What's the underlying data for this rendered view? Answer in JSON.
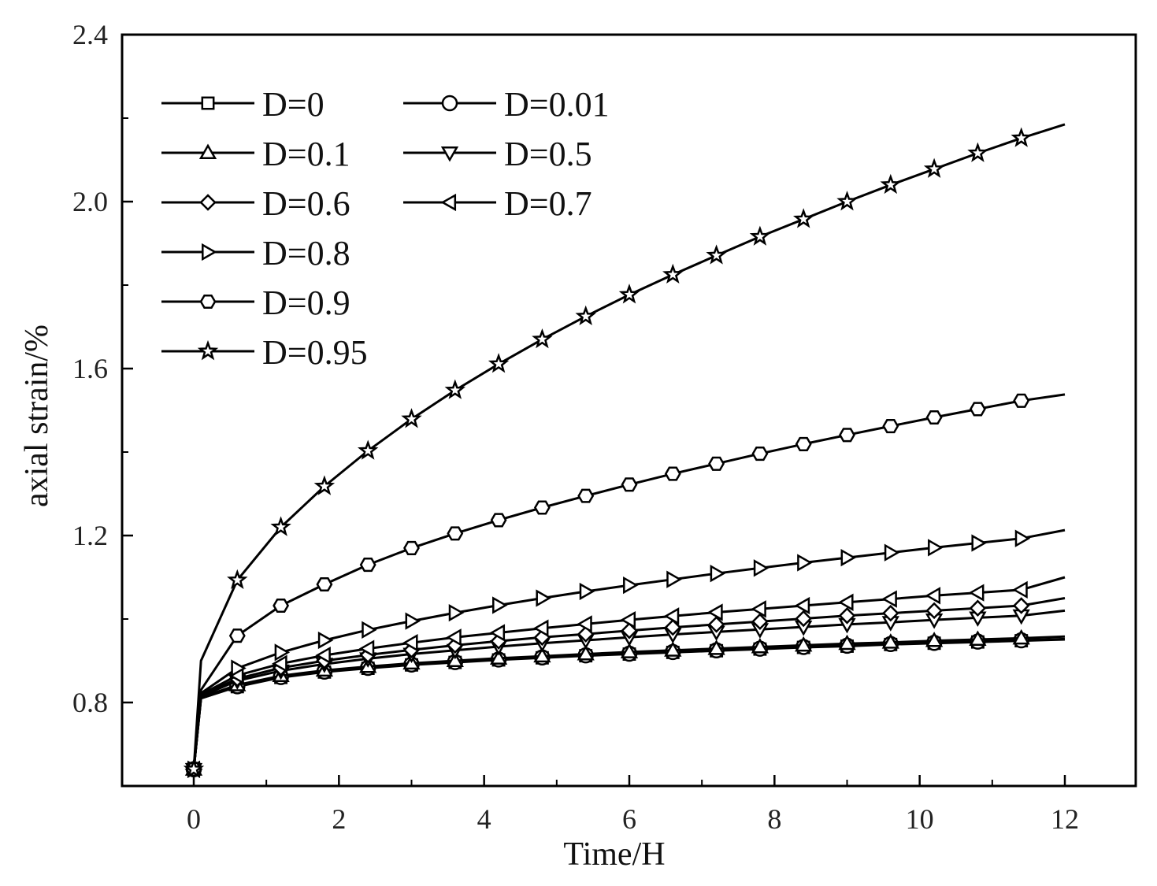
{
  "chart_data": {
    "type": "line",
    "title": "",
    "xlabel": "Time/H",
    "ylabel": "axial strain/%",
    "xlim": [
      -1,
      12.5
    ],
    "ylim": [
      0.6,
      2.4
    ],
    "xticks": [
      0,
      2,
      4,
      6,
      8,
      10,
      12
    ],
    "xtick_labels": [
      "0",
      "2",
      "4",
      "6",
      "8",
      "10",
      "12"
    ],
    "yticks": [
      0.8,
      1.2,
      1.6,
      2.0,
      2.4
    ],
    "ytick_labels": [
      "0.8",
      "1.2",
      "1.6",
      "2.0",
      "2.4"
    ],
    "grid": false,
    "legend_position": "top-left",
    "x": [
      0,
      0.1,
      0.6,
      1.2,
      1.8,
      2.4,
      3.0,
      3.6,
      4.2,
      4.8,
      5.4,
      6.0,
      6.6,
      7.2,
      7.8,
      8.4,
      9.0,
      9.6,
      10.2,
      10.8,
      11.4,
      12.0
    ],
    "series": [
      {
        "name": "D=0",
        "marker": "square",
        "values": [
          0.64,
          0.81,
          0.838,
          0.86,
          0.873,
          0.882,
          0.89,
          0.896,
          0.902,
          0.907,
          0.912,
          0.916,
          0.92,
          0.924,
          0.928,
          0.932,
          0.935,
          0.939,
          0.942,
          0.945,
          0.948,
          0.951
        ]
      },
      {
        "name": "D=0.01",
        "marker": "circle",
        "values": [
          0.64,
          0.81,
          0.839,
          0.861,
          0.874,
          0.883,
          0.891,
          0.897,
          0.903,
          0.908,
          0.913,
          0.917,
          0.921,
          0.925,
          0.929,
          0.933,
          0.936,
          0.94,
          0.943,
          0.946,
          0.949,
          0.952
        ]
      },
      {
        "name": "D=0.1",
        "marker": "triangle-up",
        "values": [
          0.64,
          0.812,
          0.842,
          0.864,
          0.877,
          0.886,
          0.894,
          0.9,
          0.906,
          0.911,
          0.916,
          0.921,
          0.925,
          0.929,
          0.933,
          0.937,
          0.941,
          0.944,
          0.948,
          0.951,
          0.954,
          0.958
        ]
      },
      {
        "name": "D=0.5",
        "marker": "triangle-down",
        "values": [
          0.64,
          0.815,
          0.852,
          0.876,
          0.892,
          0.905,
          0.916,
          0.925,
          0.934,
          0.942,
          0.949,
          0.956,
          0.963,
          0.969,
          0.975,
          0.981,
          0.987,
          0.992,
          0.998,
          1.003,
          1.008,
          1.02
        ]
      },
      {
        "name": "D=0.6",
        "marker": "diamond",
        "values": [
          0.64,
          0.817,
          0.857,
          0.883,
          0.9,
          0.914,
          0.926,
          0.937,
          0.947,
          0.956,
          0.964,
          0.972,
          0.98,
          0.987,
          0.994,
          1.001,
          1.008,
          1.014,
          1.02,
          1.026,
          1.032,
          1.05
        ]
      },
      {
        "name": "D=0.7",
        "marker": "triangle-left",
        "values": [
          0.64,
          0.819,
          0.865,
          0.893,
          0.913,
          0.929,
          0.943,
          0.956,
          0.967,
          0.978,
          0.988,
          0.998,
          1.007,
          1.016,
          1.024,
          1.032,
          1.04,
          1.048,
          1.056,
          1.063,
          1.07,
          1.1
        ]
      },
      {
        "name": "D=0.8",
        "marker": "triangle-right",
        "values": [
          0.64,
          0.822,
          0.882,
          0.92,
          0.949,
          0.974,
          0.995,
          1.015,
          1.033,
          1.05,
          1.066,
          1.081,
          1.095,
          1.109,
          1.122,
          1.135,
          1.147,
          1.159,
          1.171,
          1.182,
          1.193,
          1.213
        ]
      },
      {
        "name": "D=0.9",
        "marker": "hexagon",
        "values": [
          0.64,
          0.83,
          0.96,
          1.032,
          1.083,
          1.13,
          1.17,
          1.205,
          1.237,
          1.267,
          1.295,
          1.322,
          1.348,
          1.372,
          1.396,
          1.419,
          1.441,
          1.462,
          1.483,
          1.503,
          1.523,
          1.538
        ]
      },
      {
        "name": "D=0.95",
        "marker": "star",
        "values": [
          0.64,
          0.9,
          1.093,
          1.22,
          1.318,
          1.403,
          1.479,
          1.548,
          1.611,
          1.67,
          1.725,
          1.777,
          1.825,
          1.871,
          1.916,
          1.958,
          2.0,
          2.04,
          2.078,
          2.116,
          2.152,
          2.185
        ]
      }
    ]
  }
}
